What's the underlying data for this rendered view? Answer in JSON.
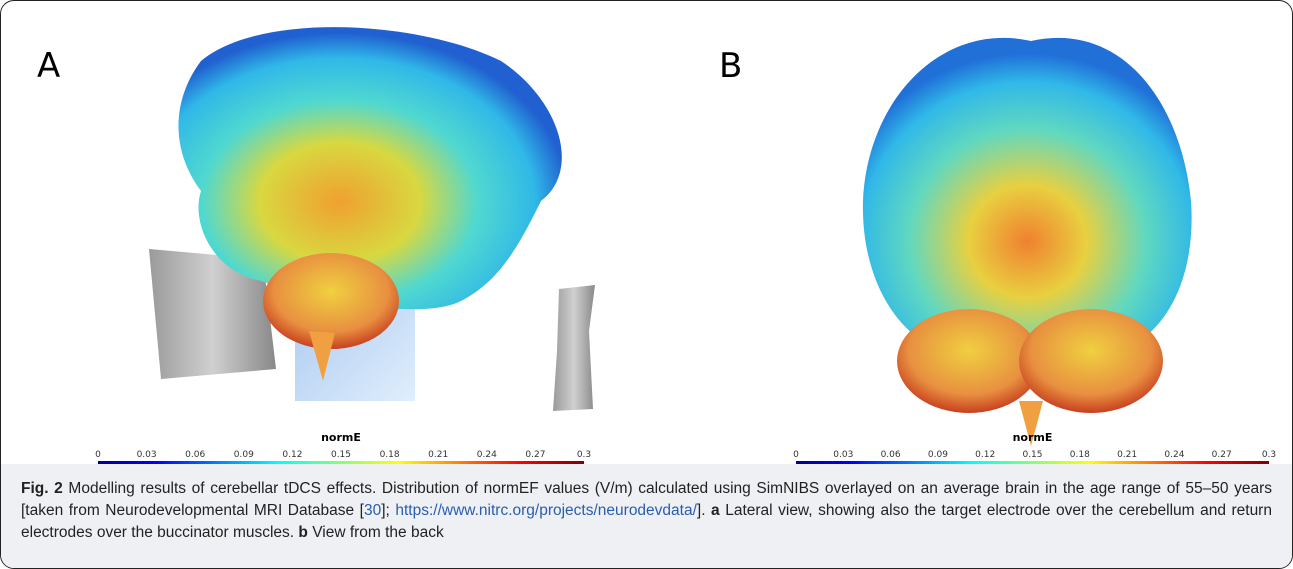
{
  "figure": {
    "panels": [
      {
        "label": "A",
        "colorbar": {
          "title": "normE",
          "ticks": [
            0,
            0.03,
            0.06,
            0.09,
            0.12,
            0.15,
            0.18,
            0.21,
            0.24,
            0.27,
            0.3
          ]
        }
      },
      {
        "label": "B",
        "colorbar": {
          "title": "normE",
          "ticks": [
            0,
            0.03,
            0.06,
            0.09,
            0.12,
            0.15,
            0.18,
            0.21,
            0.24,
            0.27,
            0.3
          ]
        }
      }
    ],
    "caption": {
      "figure_label": "Fig. 2",
      "text_1": " Modelling results of cerebellar tDCS effects. Distribution of normEF values (V/m) calculated using SimNIBS overlayed on an average brain in the age range of 55–50 years [taken from Neurodevelopmental MRI Database [",
      "ref": "30",
      "text_2": "]; ",
      "url": "https://www.nitrc.org/projects/neurodevdata/",
      "text_3": "]. ",
      "part_a": "a",
      "text_4": " Lateral view, showing also the target electrode over the cerebellum and return electrodes over the buccinator muscles. ",
      "part_b": "b",
      "text_5": " View from the back"
    }
  }
}
